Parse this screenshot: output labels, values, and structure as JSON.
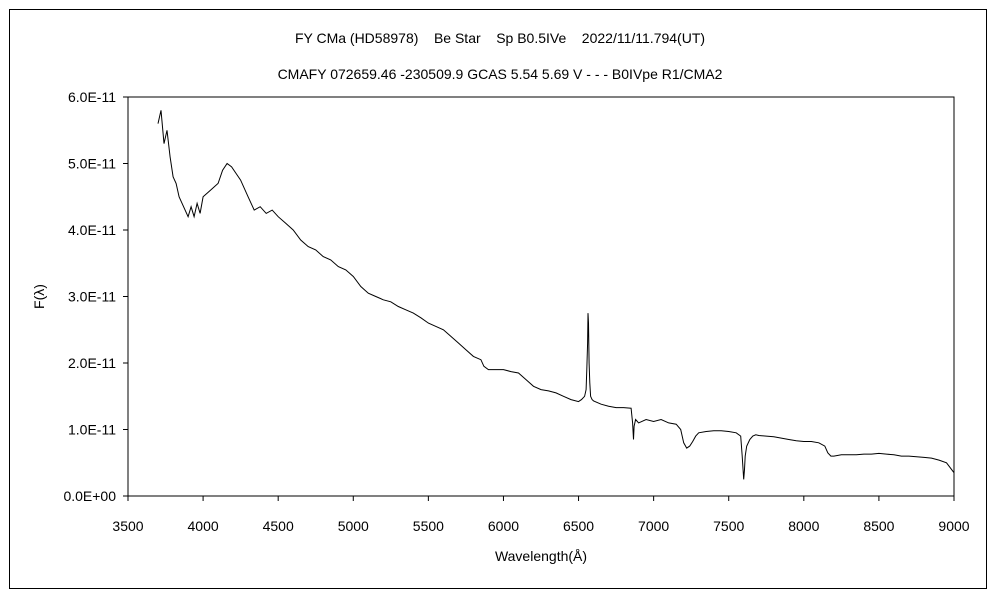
{
  "chart_data": {
    "type": "line",
    "title": "FY CMa (HD58978)    Be Star    Sp B0.5IVe    2022/11/11.794(UT)",
    "subtitle": "CMAFY 072659.46 -230509.9 GCAS 5.54 5.69 V - - - B0IVpe R1/CMA2",
    "xlabel": "Wavelength(Å)",
    "ylabel": "F(λ)",
    "xlim": [
      3500,
      9000
    ],
    "ylim": [
      0,
      6e-11
    ],
    "x_ticks": [
      3500,
      4000,
      4500,
      5000,
      5500,
      6000,
      6500,
      7000,
      7500,
      8000,
      8500,
      9000
    ],
    "y_ticks": [
      0,
      1e-11,
      2e-11,
      3e-11,
      4e-11,
      5e-11,
      6e-11
    ],
    "x_tick_labels": [
      "3500",
      "4000",
      "4500",
      "5000",
      "5500",
      "6000",
      "6500",
      "7000",
      "7500",
      "8000",
      "8500",
      "9000"
    ],
    "y_tick_labels": [
      "0.0E+00",
      "1.0E-11",
      "2.0E-11",
      "3.0E-11",
      "4.0E-11",
      "5.0E-11",
      "6.0E-11"
    ],
    "grid": false,
    "line_color": "#000000",
    "series": [
      {
        "x": [
          3700,
          3720,
          3740,
          3760,
          3780,
          3800,
          3820,
          3840,
          3860,
          3880,
          3900,
          3920,
          3940,
          3960,
          3980,
          4000,
          4050,
          4100,
          4130,
          4160,
          4190,
          4220,
          4250,
          4300,
          4340,
          4380,
          4420,
          4460,
          4500,
          4550,
          4600,
          4650,
          4700,
          4750,
          4800,
          4850,
          4900,
          4950,
          5000,
          5050,
          5100,
          5150,
          5200,
          5250,
          5300,
          5350,
          5400,
          5450,
          5500,
          5550,
          5600,
          5650,
          5700,
          5750,
          5800,
          5850,
          5870,
          5900,
          5950,
          6000,
          6050,
          6100,
          6150,
          6200,
          6250,
          6300,
          6350,
          6400,
          6450,
          6500,
          6520,
          6540,
          6550,
          6555,
          6560,
          6563,
          6566,
          6570,
          6575,
          6580,
          6590,
          6600,
          6650,
          6700,
          6750,
          6800,
          6850,
          6860,
          6866,
          6870,
          6880,
          6900,
          6950,
          7000,
          7050,
          7100,
          7150,
          7180,
          7200,
          7220,
          7240,
          7260,
          7280,
          7300,
          7350,
          7400,
          7450,
          7500,
          7550,
          7580,
          7590,
          7600,
          7605,
          7610,
          7620,
          7640,
          7660,
          7680,
          7700,
          7750,
          7800,
          7850,
          7900,
          7950,
          8000,
          8050,
          8100,
          8140,
          8160,
          8180,
          8200,
          8250,
          8300,
          8350,
          8400,
          8450,
          8500,
          8550,
          8600,
          8650,
          8700,
          8750,
          8800,
          8850,
          8900,
          8950,
          9000
        ],
        "y": [
          5.6e-11,
          5.8e-11,
          5.3e-11,
          5.5e-11,
          5.1e-11,
          4.8e-11,
          4.7e-11,
          4.5e-11,
          4.4e-11,
          4.3e-11,
          4.2e-11,
          4.35e-11,
          4.2e-11,
          4.4e-11,
          4.25e-11,
          4.5e-11,
          4.6e-11,
          4.7e-11,
          4.9e-11,
          5e-11,
          4.95e-11,
          4.85e-11,
          4.75e-11,
          4.5e-11,
          4.3e-11,
          4.35e-11,
          4.25e-11,
          4.3e-11,
          4.2e-11,
          4.1e-11,
          4e-11,
          3.85e-11,
          3.75e-11,
          3.7e-11,
          3.6e-11,
          3.55e-11,
          3.45e-11,
          3.4e-11,
          3.3e-11,
          3.15e-11,
          3.05e-11,
          3e-11,
          2.95e-11,
          2.92e-11,
          2.85e-11,
          2.8e-11,
          2.75e-11,
          2.68e-11,
          2.6e-11,
          2.55e-11,
          2.5e-11,
          2.4e-11,
          2.3e-11,
          2.2e-11,
          2.1e-11,
          2.05e-11,
          1.95e-11,
          1.9e-11,
          1.9e-11,
          1.9e-11,
          1.87e-11,
          1.85e-11,
          1.75e-11,
          1.65e-11,
          1.6e-11,
          1.58e-11,
          1.55e-11,
          1.5e-11,
          1.45e-11,
          1.42e-11,
          1.45e-11,
          1.5e-11,
          1.6e-11,
          1.9e-11,
          2.3e-11,
          2.75e-11,
          2.6e-11,
          2e-11,
          1.7e-11,
          1.5e-11,
          1.45e-11,
          1.43e-11,
          1.38e-11,
          1.35e-11,
          1.33e-11,
          1.33e-11,
          1.32e-11,
          1.1e-11,
          8.5e-12,
          1.05e-11,
          1.15e-11,
          1.1e-11,
          1.15e-11,
          1.12e-11,
          1.15e-11,
          1.1e-11,
          1.08e-11,
          1e-11,
          8e-12,
          7.2e-12,
          7.5e-12,
          8.2e-12,
          9e-12,
          9.5e-12,
          9.7e-12,
          9.8e-12,
          9.8e-12,
          9.7e-12,
          9.5e-12,
          9e-12,
          6e-12,
          2.5e-12,
          4e-12,
          6e-12,
          7.5e-12,
          8.5e-12,
          9e-12,
          9.2e-12,
          9.1e-12,
          9e-12,
          8.9e-12,
          8.7e-12,
          8.5e-12,
          8.3e-12,
          8.2e-12,
          8.2e-12,
          8e-12,
          7.5e-12,
          6.5e-12,
          6e-12,
          6e-12,
          6.2e-12,
          6.2e-12,
          6.2e-12,
          6.3e-12,
          6.3e-12,
          6.4e-12,
          6.3e-12,
          6.2e-12,
          6e-12,
          6e-12,
          5.9e-12,
          5.8e-12,
          5.7e-12,
          5.4e-12,
          5e-12,
          3.5e-12
        ]
      }
    ]
  }
}
